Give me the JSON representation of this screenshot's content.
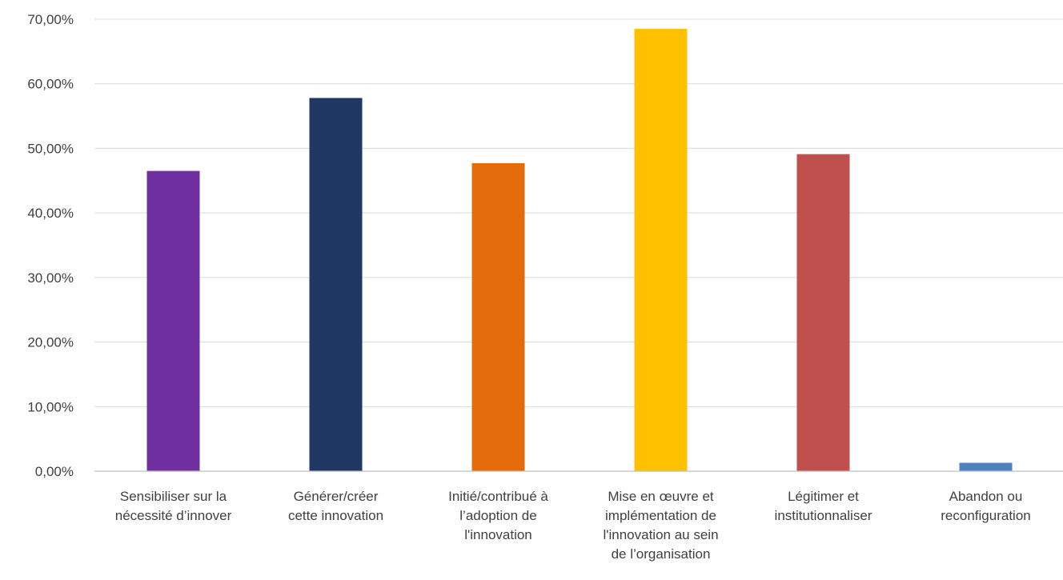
{
  "chart_data": {
    "type": "bar",
    "title": "",
    "xlabel": "",
    "ylabel": "",
    "ylim": [
      0,
      70
    ],
    "y_tick_step": 10,
    "y_tick_labels": [
      "0,00%",
      "10,00%",
      "20,00%",
      "30,00%",
      "40,00%",
      "50,00%",
      "60,00%",
      "70,00%"
    ],
    "grid": true,
    "legend": "none",
    "categories": [
      [
        "Sensibiliser sur la",
        "nécessité d’innover"
      ],
      [
        "Générer/créer",
        "cette innovation"
      ],
      [
        "Initié/contribué à",
        "l’adoption de",
        "l'innovation"
      ],
      [
        "Mise en œuvre et",
        "implémentation de",
        "l'innovation au sein",
        "de l’organisation"
      ],
      [
        "Légitimer et",
        "institutionnaliser"
      ],
      [
        "Abandon ou",
        "reconfiguration"
      ]
    ],
    "values": [
      46.5,
      57.8,
      47.7,
      68.5,
      49.1,
      1.3
    ],
    "colors": [
      "#7030A0",
      "#1F3864",
      "#E46C0A",
      "#FFC000",
      "#C0504D",
      "#4F81BD"
    ],
    "grid_color": "#d9d9d9",
    "axis_color": "#bfbfbf"
  }
}
